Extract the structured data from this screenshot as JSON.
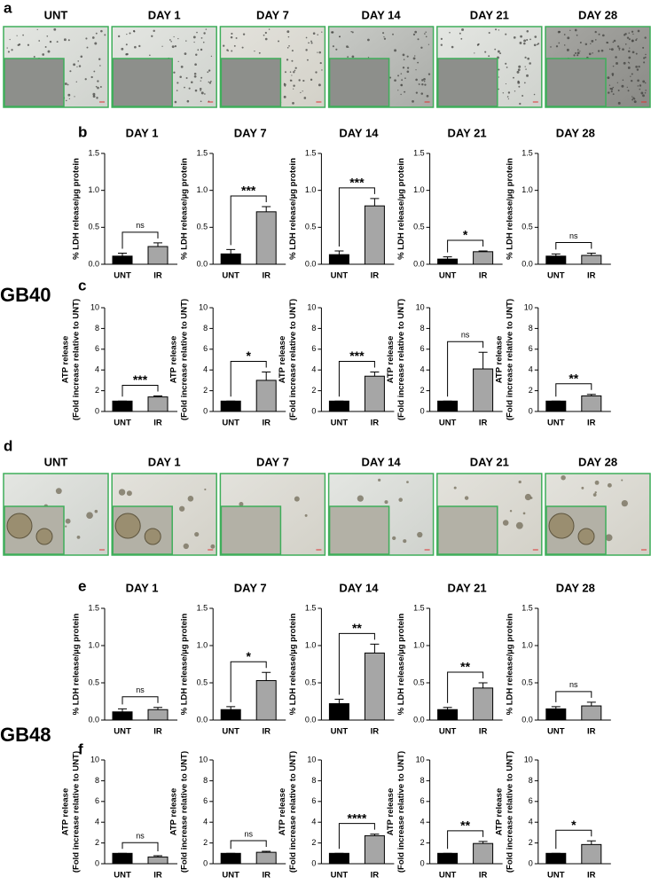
{
  "figure": {
    "panel_labels": [
      "a",
      "b",
      "c",
      "d",
      "e",
      "f"
    ],
    "cell_lines": [
      "GB40",
      "GB48"
    ],
    "image_rows": [
      {
        "titles": [
          "UNT",
          "DAY 1",
          "DAY 7",
          "DAY 14",
          "DAY 21",
          "DAY 28"
        ]
      },
      {
        "titles": [
          "UNT",
          "DAY 1",
          "DAY 7",
          "DAY 14",
          "DAY 21",
          "DAY 28"
        ]
      }
    ]
  },
  "chart_data": [
    {
      "type": "bar",
      "title": "DAY 1",
      "y_label": [
        "% LDH release/µg protein"
      ],
      "categories": [
        "UNT",
        "IR"
      ],
      "values": [
        0.11,
        0.24
      ],
      "errors": [
        0.04,
        0.05
      ],
      "significance": "ns",
      "colors": [
        "#000000",
        "#a6a6a6"
      ],
      "ylim": [
        0,
        1.5
      ],
      "yticks": [
        {
          "value": 0,
          "label": "0.0"
        },
        0.5,
        {
          "value": 1,
          "label": "1.0"
        },
        1.5
      ]
    },
    {
      "type": "bar",
      "title": "DAY 7",
      "y_label": [
        "% LDH release/µg protein"
      ],
      "categories": [
        "UNT",
        "IR"
      ],
      "values": [
        0.14,
        0.71
      ],
      "errors": [
        0.06,
        0.07
      ],
      "significance": "***",
      "colors": [
        "#000000",
        "#a6a6a6"
      ],
      "ylim": [
        0,
        1.5
      ],
      "yticks": [
        {
          "value": 0,
          "label": "0.0"
        },
        0.5,
        {
          "value": 1,
          "label": "1.0"
        },
        1.5
      ]
    },
    {
      "type": "bar",
      "title": "DAY 14",
      "y_label": [
        "% LDH release/µg protein"
      ],
      "categories": [
        "UNT",
        "IR"
      ],
      "values": [
        0.13,
        0.79
      ],
      "errors": [
        0.05,
        0.1
      ],
      "significance": "***",
      "colors": [
        "#000000",
        "#a6a6a6"
      ],
      "ylim": [
        0,
        1.5
      ],
      "yticks": [
        {
          "value": 0,
          "label": "0.0"
        },
        0.5,
        {
          "value": 1,
          "label": "1.0"
        },
        1.5
      ]
    },
    {
      "type": "bar",
      "title": "DAY 21",
      "y_label": [
        "% LDH release/µg protein"
      ],
      "categories": [
        "UNT",
        "IR"
      ],
      "values": [
        0.07,
        0.17
      ],
      "errors": [
        0.03,
        0.01
      ],
      "significance": "*",
      "colors": [
        "#000000",
        "#a6a6a6"
      ],
      "ylim": [
        0,
        1.5
      ],
      "yticks": [
        {
          "value": 0,
          "label": "0.0"
        },
        0.5,
        {
          "value": 1,
          "label": "1.0"
        },
        1.5
      ]
    },
    {
      "type": "bar",
      "title": "DAY 28",
      "y_label": [
        "% LDH release/µg protein"
      ],
      "categories": [
        "UNT",
        "IR"
      ],
      "values": [
        0.11,
        0.12
      ],
      "errors": [
        0.03,
        0.03
      ],
      "significance": "ns",
      "colors": [
        "#000000",
        "#a6a6a6"
      ],
      "ylim": [
        0,
        1.5
      ],
      "yticks": [
        {
          "value": 0,
          "label": "0.0"
        },
        0.5,
        {
          "value": 1,
          "label": "1.0"
        },
        1.5
      ]
    },
    {
      "type": "bar",
      "y_label": [
        "ATP release",
        "(Fold increase relative to UNT)"
      ],
      "categories": [
        "UNT",
        "IR"
      ],
      "values": [
        1,
        1.4
      ],
      "errors": [
        0,
        0.1
      ],
      "significance": "***",
      "colors": [
        "#000000",
        "#a6a6a6"
      ],
      "ylim": [
        0,
        10
      ],
      "yticks": [
        0,
        2,
        4,
        6,
        8,
        10
      ]
    },
    {
      "type": "bar",
      "y_label": [
        "ATP release",
        "(Fold increase relative to UNT)"
      ],
      "categories": [
        "UNT",
        "IR"
      ],
      "values": [
        1,
        3.0
      ],
      "errors": [
        0,
        0.8
      ],
      "significance": "*",
      "colors": [
        "#000000",
        "#a6a6a6"
      ],
      "ylim": [
        0,
        10
      ],
      "yticks": [
        0,
        2,
        4,
        6,
        8,
        10
      ]
    },
    {
      "type": "bar",
      "y_label": [
        "ATP release",
        "(Fold increase relative to UNT)"
      ],
      "categories": [
        "UNT",
        "IR"
      ],
      "values": [
        1,
        3.4
      ],
      "errors": [
        0,
        0.4
      ],
      "significance": "***",
      "colors": [
        "#000000",
        "#a6a6a6"
      ],
      "ylim": [
        0,
        10
      ],
      "yticks": [
        0,
        2,
        4,
        6,
        8,
        10
      ]
    },
    {
      "type": "bar",
      "y_label": [
        "ATP release",
        "(Fold increase relative to UNT)"
      ],
      "categories": [
        "UNT",
        "IR"
      ],
      "values": [
        1,
        4.1
      ],
      "errors": [
        0,
        1.6
      ],
      "significance": "ns",
      "colors": [
        "#000000",
        "#a6a6a6"
      ],
      "ylim": [
        0,
        10
      ],
      "yticks": [
        0,
        2,
        4,
        6,
        8,
        10
      ]
    },
    {
      "type": "bar",
      "y_label": [
        "ATP release",
        "(Fold increase relative to UNT)"
      ],
      "categories": [
        "UNT",
        "IR"
      ],
      "values": [
        1,
        1.5
      ],
      "errors": [
        0,
        0.15
      ],
      "significance": "**",
      "colors": [
        "#000000",
        "#a6a6a6"
      ],
      "ylim": [
        0,
        10
      ],
      "yticks": [
        0,
        2,
        4,
        6,
        8,
        10
      ]
    },
    {
      "type": "bar",
      "title": "DAY 1",
      "y_label": [
        "% LDH release/µg protein"
      ],
      "categories": [
        "UNT",
        "IR"
      ],
      "values": [
        0.11,
        0.14
      ],
      "errors": [
        0.04,
        0.03
      ],
      "significance": "ns",
      "colors": [
        "#000000",
        "#a6a6a6"
      ],
      "ylim": [
        0,
        1.5
      ],
      "yticks": [
        {
          "value": 0,
          "label": "0.0"
        },
        0.5,
        {
          "value": 1,
          "label": "1.0"
        },
        1.5
      ]
    },
    {
      "type": "bar",
      "title": "DAY 7",
      "y_label": [
        "% LDH release/µg protein"
      ],
      "categories": [
        "UNT",
        "IR"
      ],
      "values": [
        0.14,
        0.53
      ],
      "errors": [
        0.04,
        0.11
      ],
      "significance": "*",
      "colors": [
        "#000000",
        "#a6a6a6"
      ],
      "ylim": [
        0,
        1.5
      ],
      "yticks": [
        {
          "value": 0,
          "label": "0.0"
        },
        0.5,
        {
          "value": 1,
          "label": "1.0"
        },
        1.5
      ]
    },
    {
      "type": "bar",
      "title": "DAY 14",
      "y_label": [
        "% LDH release/µg protein"
      ],
      "categories": [
        "UNT",
        "IR"
      ],
      "values": [
        0.22,
        0.9
      ],
      "errors": [
        0.06,
        0.12
      ],
      "significance": "**",
      "colors": [
        "#000000",
        "#a6a6a6"
      ],
      "ylim": [
        0,
        1.5
      ],
      "yticks": [
        {
          "value": 0,
          "label": "0.0"
        },
        0.5,
        {
          "value": 1,
          "label": "1.0"
        },
        1.5
      ]
    },
    {
      "type": "bar",
      "title": "DAY 21",
      "y_label": [
        "% LDH release/µg protein"
      ],
      "categories": [
        "UNT",
        "IR"
      ],
      "values": [
        0.14,
        0.43
      ],
      "errors": [
        0.03,
        0.07
      ],
      "significance": "**",
      "colors": [
        "#000000",
        "#a6a6a6"
      ],
      "ylim": [
        0,
        1.5
      ],
      "yticks": [
        {
          "value": 0,
          "label": "0.0"
        },
        0.5,
        {
          "value": 1,
          "label": "1.0"
        },
        1.5
      ]
    },
    {
      "type": "bar",
      "title": "DAY 28",
      "y_label": [
        "% LDH release/µg protein"
      ],
      "categories": [
        "UNT",
        "IR"
      ],
      "values": [
        0.15,
        0.19
      ],
      "errors": [
        0.03,
        0.05
      ],
      "significance": "ns",
      "colors": [
        "#000000",
        "#a6a6a6"
      ],
      "ylim": [
        0,
        1.5
      ],
      "yticks": [
        {
          "value": 0,
          "label": "0.0"
        },
        0.5,
        {
          "value": 1,
          "label": "1.0"
        },
        1.5
      ]
    },
    {
      "type": "bar",
      "y_label": [
        "ATP release",
        "(Fold increase relative to UNT)"
      ],
      "categories": [
        "UNT",
        "IR"
      ],
      "values": [
        1,
        0.65
      ],
      "errors": [
        0,
        0.12
      ],
      "significance": "ns",
      "colors": [
        "#000000",
        "#a6a6a6"
      ],
      "ylim": [
        0,
        10
      ],
      "yticks": [
        0,
        2,
        4,
        6,
        8,
        10
      ]
    },
    {
      "type": "bar",
      "y_label": [
        "ATP release",
        "(Fold increase relative to UNT)"
      ],
      "categories": [
        "UNT",
        "IR"
      ],
      "values": [
        1,
        1.1
      ],
      "errors": [
        0,
        0.1
      ],
      "significance": "ns",
      "colors": [
        "#000000",
        "#a6a6a6"
      ],
      "ylim": [
        0,
        10
      ],
      "yticks": [
        0,
        2,
        4,
        6,
        8,
        10
      ]
    },
    {
      "type": "bar",
      "y_label": [
        "ATP release",
        "(Fold increase relative to UNT)"
      ],
      "categories": [
        "UNT",
        "IR"
      ],
      "values": [
        1,
        2.7
      ],
      "errors": [
        0,
        0.15
      ],
      "significance": "****",
      "colors": [
        "#000000",
        "#a6a6a6"
      ],
      "ylim": [
        0,
        10
      ],
      "yticks": [
        0,
        2,
        4,
        6,
        8,
        10
      ]
    },
    {
      "type": "bar",
      "y_label": [
        "ATP release",
        "(Fold increase relative to UNT)"
      ],
      "categories": [
        "UNT",
        "IR"
      ],
      "values": [
        1,
        1.95
      ],
      "errors": [
        0,
        0.2
      ],
      "significance": "**",
      "colors": [
        "#000000",
        "#a6a6a6"
      ],
      "ylim": [
        0,
        10
      ],
      "yticks": [
        0,
        2,
        4,
        6,
        8,
        10
      ]
    },
    {
      "type": "bar",
      "y_label": [
        "ATP release",
        "(Fold increase relative to UNT)"
      ],
      "categories": [
        "UNT",
        "IR"
      ],
      "values": [
        1,
        1.85
      ],
      "errors": [
        0,
        0.35
      ],
      "significance": "*",
      "colors": [
        "#000000",
        "#a6a6a6"
      ],
      "ylim": [
        0,
        10
      ],
      "yticks": [
        0,
        2,
        4,
        6,
        8,
        10
      ]
    }
  ]
}
